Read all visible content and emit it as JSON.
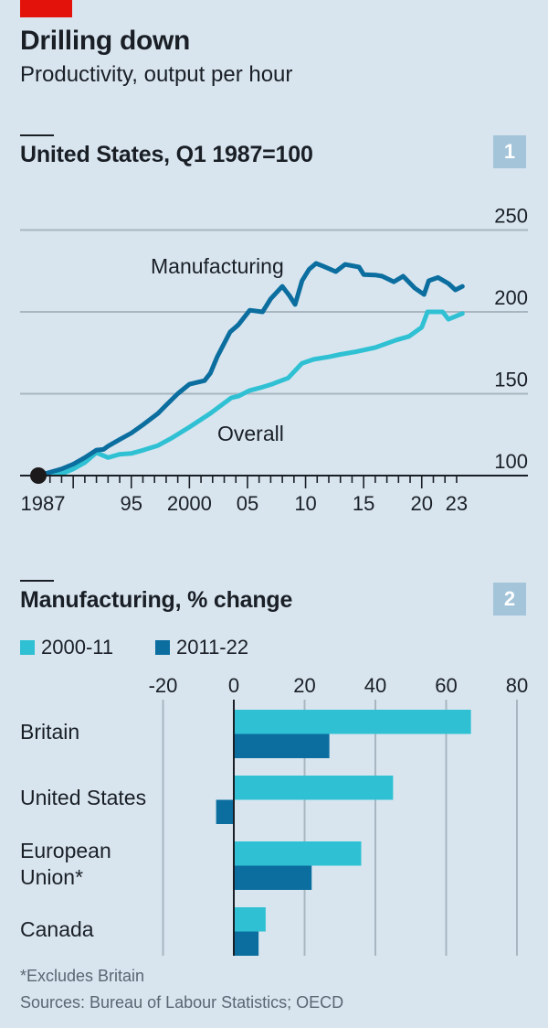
{
  "header": {
    "title": "Drilling down",
    "subtitle": "Productivity, output per hour"
  },
  "colors": {
    "brand_red": "#e3120b",
    "dark_blue": "#0b6e9f",
    "light_blue": "#2fc1d3",
    "badge": "#a3c4d9",
    "grid": "#a8b6c2",
    "axis": "#1a1f26"
  },
  "panels": [
    {
      "badge": "1",
      "title": "United States, Q1 1987=100"
    },
    {
      "badge": "2",
      "title": "Manufacturing, % change"
    }
  ],
  "chart_data": [
    {
      "type": "line",
      "title": "United States, Q1 1987=100",
      "xlabel": "",
      "ylabel": "",
      "xlim": [
        1987,
        2023.5
      ],
      "ylim": [
        100,
        250
      ],
      "yticks": [
        100,
        150,
        200,
        250
      ],
      "ytick_labels": [
        "100",
        "150",
        "200",
        "250"
      ],
      "xtick_labels": [
        {
          "x": 1987,
          "label": "1987"
        },
        {
          "x": 1995,
          "label": "95"
        },
        {
          "x": 2000,
          "label": "2000"
        },
        {
          "x": 2005,
          "label": "05"
        },
        {
          "x": 2010,
          "label": "10"
        },
        {
          "x": 2015,
          "label": "15"
        },
        {
          "x": 2020,
          "label": "20"
        },
        {
          "x": 2023,
          "label": "23"
        }
      ],
      "grid": true,
      "series": [
        {
          "name": "Manufacturing",
          "color": "#0b6e9f",
          "x": [
            1987,
            1988,
            1989,
            1990,
            1991,
            1992,
            1992.6,
            1993,
            1994,
            1995,
            1996,
            1997.3,
            1998,
            1999,
            2000,
            2001.3,
            2001.8,
            2002.4,
            2003.5,
            2004.2,
            2005.2,
            2006.3,
            2007,
            2008,
            2008.6,
            2009.1,
            2009.7,
            2010.3,
            2010.9,
            2011.5,
            2012.6,
            2013.4,
            2014.6,
            2015,
            2016,
            2016.6,
            2017.6,
            2018.4,
            2019.4,
            2020.2,
            2020.6,
            2021.4,
            2022.3,
            2022.9,
            2023.5
          ],
          "y": [
            100,
            102,
            104,
            107,
            111,
            115.6,
            116,
            118,
            122,
            126,
            131,
            138,
            143,
            150,
            155.8,
            158,
            162.5,
            172.6,
            187.7,
            192,
            201,
            200,
            208,
            215.6,
            210,
            204.5,
            219,
            226,
            229.6,
            228,
            224.6,
            229,
            227.4,
            222.8,
            222.5,
            221.8,
            218.4,
            221.8,
            214.5,
            210.6,
            219,
            221,
            217.3,
            213.4,
            215.6
          ]
        },
        {
          "name": "Overall",
          "color": "#2fc1d3",
          "x": [
            1987,
            1988,
            1989,
            1990,
            1991,
            1992,
            1993,
            1994,
            1995,
            1996,
            1997.3,
            1998.5,
            2000,
            2001.8,
            2003.6,
            2004.2,
            2005.2,
            2006.3,
            2007.1,
            2008.5,
            2009.7,
            2010.7,
            2012,
            2013,
            2014.2,
            2016,
            2017.8,
            2018.9,
            2020,
            2020.5,
            2021.8,
            2022.3,
            2023.5
          ],
          "y": [
            100,
            101,
            101,
            104,
            108,
            114,
            111,
            113,
            113.5,
            115.5,
            118.4,
            123,
            129.6,
            138,
            147.5,
            148.5,
            152,
            154,
            155.8,
            159.6,
            168.6,
            171,
            172.5,
            174,
            175.5,
            178.2,
            182.8,
            185,
            190.6,
            200,
            200,
            195.5,
            199
          ]
        }
      ],
      "annotations": [
        {
          "text": "Manufacturing",
          "series": "Manufacturing"
        },
        {
          "text": "Overall",
          "series": "Overall"
        }
      ]
    },
    {
      "type": "bar",
      "orientation": "horizontal",
      "title": "Manufacturing, % change",
      "categories": [
        "Britain",
        "United States",
        "European Union*",
        "Canada"
      ],
      "category_lines": [
        [
          "Britain"
        ],
        [
          "United States"
        ],
        [
          "European",
          "Union*"
        ],
        [
          "Canada"
        ]
      ],
      "series": [
        {
          "name": "2000-11",
          "color": "#2fc1d3",
          "values": [
            67,
            45,
            36,
            9
          ]
        },
        {
          "name": "2011-22",
          "color": "#0b6e9f",
          "values": [
            27,
            -5,
            22,
            7
          ]
        }
      ],
      "xlim": [
        -20,
        80
      ],
      "xticks": [
        -20,
        0,
        20,
        40,
        60,
        80
      ],
      "xtick_labels": [
        "-20",
        "0",
        "20",
        "40",
        "60",
        "80"
      ],
      "grid": true,
      "legend": "top-left"
    }
  ],
  "footnotes": {
    "note": "*Excludes Britain",
    "sources": "Sources: Bureau of Labour Statistics; OECD"
  }
}
